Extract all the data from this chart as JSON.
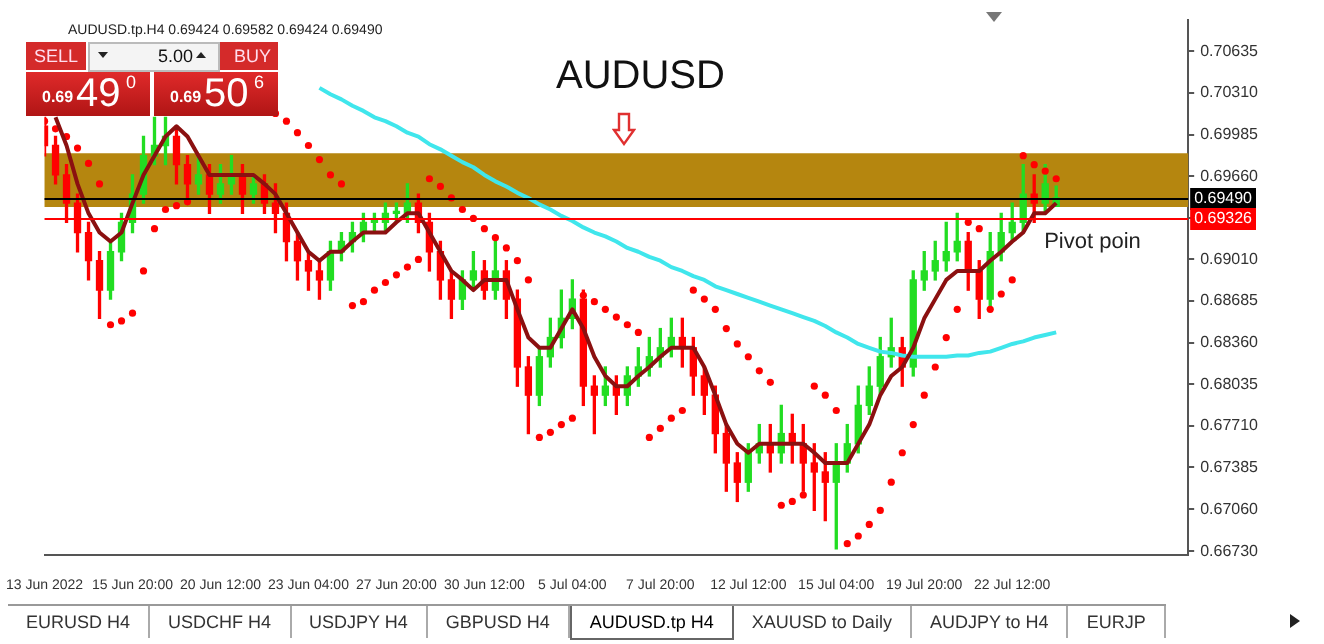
{
  "chart_data": {
    "type": "candlestick",
    "title": "AUDUSD",
    "categories": [
      "13 Jun 2022",
      null,
      null,
      null,
      null,
      null,
      null,
      null,
      "15 Jun 20:00",
      null,
      null,
      null,
      null,
      null,
      null,
      null,
      "20 Jun 12:00",
      null,
      null,
      null,
      null,
      null,
      null,
      null,
      "23 Jun 04:00",
      null,
      null,
      null,
      null,
      null,
      null,
      null,
      "27 Jun 20:00",
      null,
      null,
      null,
      null,
      null,
      null,
      null,
      "30 Jun 12:00",
      null,
      null,
      null,
      null,
      null,
      null,
      null,
      "5 Jul 04:00",
      null,
      null,
      null,
      null,
      null,
      null,
      null,
      "7 Jul 20:00",
      null,
      null,
      null,
      null,
      null,
      null,
      null,
      "12 Jul 12:00",
      null,
      null,
      null,
      null,
      null,
      null,
      null,
      "15 Jul 04:00",
      null,
      null,
      null,
      null,
      null,
      null,
      null,
      "19 Jul 20:00",
      null,
      null,
      null,
      null,
      null,
      null,
      null,
      "22 Jul 12:00",
      null,
      null,
      null,
      null
    ],
    "series": [
      {
        "type": "candlestick",
        "ohlc": [
          [
            0.7005,
            0.7012,
            0.6982,
            0.699
          ],
          [
            0.699,
            0.6997,
            0.696,
            0.6967
          ],
          [
            0.6967,
            0.6975,
            0.693,
            0.6945
          ],
          [
            0.6945,
            0.6952,
            0.6907,
            0.6922
          ],
          [
            0.6922,
            0.693,
            0.6885,
            0.69
          ],
          [
            0.69,
            0.6907,
            0.6855,
            0.6877
          ],
          [
            0.6877,
            0.6915,
            0.687,
            0.6907
          ],
          [
            0.6907,
            0.6937,
            0.69,
            0.693
          ],
          [
            0.693,
            0.6967,
            0.6922,
            0.6952
          ],
          [
            0.6952,
            0.6997,
            0.6945,
            0.6982
          ],
          [
            0.6982,
            0.7012,
            0.6975,
            0.699
          ],
          [
            0.699,
            0.7012,
            0.6975,
            0.6997
          ],
          [
            0.6997,
            0.7005,
            0.696,
            0.6975
          ],
          [
            0.6975,
            0.6982,
            0.6945,
            0.696
          ],
          [
            0.696,
            0.6982,
            0.6952,
            0.6967
          ],
          [
            0.6967,
            0.6975,
            0.6937,
            0.6952
          ],
          [
            0.6952,
            0.6975,
            0.6945,
            0.696
          ],
          [
            0.696,
            0.6982,
            0.6952,
            0.6967
          ],
          [
            0.6967,
            0.6975,
            0.6937,
            0.6952
          ],
          [
            0.6952,
            0.6967,
            0.6945,
            0.696
          ],
          [
            0.696,
            0.6967,
            0.6937,
            0.6945
          ],
          [
            0.6945,
            0.696,
            0.6922,
            0.6937
          ],
          [
            0.6937,
            0.6945,
            0.69,
            0.6915
          ],
          [
            0.6915,
            0.6922,
            0.6885,
            0.69
          ],
          [
            0.69,
            0.6907,
            0.6877,
            0.6892
          ],
          [
            0.6892,
            0.69,
            0.687,
            0.6885
          ],
          [
            0.6885,
            0.6915,
            0.6877,
            0.6907
          ],
          [
            0.6907,
            0.6922,
            0.69,
            0.6915
          ],
          [
            0.6915,
            0.693,
            0.6907,
            0.6922
          ],
          [
            0.6922,
            0.6937,
            0.6915,
            0.693
          ],
          [
            0.693,
            0.6937,
            0.6922,
            0.693
          ],
          [
            0.693,
            0.6945,
            0.6922,
            0.6937
          ],
          [
            0.6937,
            0.6945,
            0.693,
            0.6937
          ],
          [
            0.6937,
            0.696,
            0.693,
            0.6945
          ],
          [
            0.6945,
            0.6952,
            0.6922,
            0.693
          ],
          [
            0.693,
            0.6937,
            0.6892,
            0.6907
          ],
          [
            0.6907,
            0.6915,
            0.687,
            0.6885
          ],
          [
            0.6885,
            0.6892,
            0.6855,
            0.687
          ],
          [
            0.687,
            0.6892,
            0.6862,
            0.6885
          ],
          [
            0.6885,
            0.6907,
            0.6877,
            0.6892
          ],
          [
            0.6892,
            0.69,
            0.687,
            0.6877
          ],
          [
            0.6877,
            0.6915,
            0.687,
            0.6892
          ],
          [
            0.6892,
            0.69,
            0.6855,
            0.687
          ],
          [
            0.687,
            0.6877,
            0.6802,
            0.6817
          ],
          [
            0.6817,
            0.6825,
            0.6765,
            0.6795
          ],
          [
            0.6795,
            0.6832,
            0.6787,
            0.6825
          ],
          [
            0.6825,
            0.6855,
            0.6817,
            0.684
          ],
          [
            0.684,
            0.6877,
            0.6832,
            0.6855
          ],
          [
            0.6855,
            0.6885,
            0.6847,
            0.687
          ],
          [
            0.687,
            0.6877,
            0.6787,
            0.6802
          ],
          [
            0.6802,
            0.681,
            0.6765,
            0.6795
          ],
          [
            0.6795,
            0.6817,
            0.6787,
            0.6802
          ],
          [
            0.6802,
            0.681,
            0.678,
            0.6795
          ],
          [
            0.6795,
            0.6817,
            0.6787,
            0.681
          ],
          [
            0.681,
            0.6832,
            0.6802,
            0.6817
          ],
          [
            0.6817,
            0.684,
            0.681,
            0.6825
          ],
          [
            0.6825,
            0.6847,
            0.6817,
            0.6832
          ],
          [
            0.6832,
            0.6855,
            0.6825,
            0.684
          ],
          [
            0.684,
            0.6855,
            0.6817,
            0.6832
          ],
          [
            0.6832,
            0.684,
            0.6795,
            0.681
          ],
          [
            0.681,
            0.6817,
            0.678,
            0.6795
          ],
          [
            0.6795,
            0.6802,
            0.675,
            0.6765
          ],
          [
            0.6765,
            0.6772,
            0.672,
            0.6742
          ],
          [
            0.6742,
            0.675,
            0.6712,
            0.6727
          ],
          [
            0.6727,
            0.6757,
            0.672,
            0.675
          ],
          [
            0.675,
            0.6772,
            0.6742,
            0.6757
          ],
          [
            0.6757,
            0.6772,
            0.6735,
            0.675
          ],
          [
            0.675,
            0.6787,
            0.6742,
            0.6765
          ],
          [
            0.6765,
            0.678,
            0.6742,
            0.6757
          ],
          [
            0.6757,
            0.6772,
            0.672,
            0.6742
          ],
          [
            0.6742,
            0.6757,
            0.6705,
            0.6735
          ],
          [
            0.6735,
            0.675,
            0.6697,
            0.6727
          ],
          [
            0.6727,
            0.6757,
            0.6675,
            0.6742
          ],
          [
            0.6742,
            0.6772,
            0.6735,
            0.6757
          ],
          [
            0.6757,
            0.6802,
            0.675,
            0.6787
          ],
          [
            0.6787,
            0.6817,
            0.678,
            0.6802
          ],
          [
            0.6802,
            0.684,
            0.6795,
            0.6825
          ],
          [
            0.6825,
            0.6855,
            0.6817,
            0.6832
          ],
          [
            0.6832,
            0.684,
            0.6802,
            0.6817
          ],
          [
            0.6817,
            0.6892,
            0.681,
            0.6885
          ],
          [
            0.6885,
            0.6907,
            0.6877,
            0.6892
          ],
          [
            0.6892,
            0.6915,
            0.6885,
            0.69
          ],
          [
            0.69,
            0.693,
            0.6892,
            0.6907
          ],
          [
            0.6907,
            0.6937,
            0.69,
            0.6915
          ],
          [
            0.6915,
            0.6922,
            0.6877,
            0.6892
          ],
          [
            0.6892,
            0.69,
            0.6855,
            0.687
          ],
          [
            0.687,
            0.6922,
            0.6862,
            0.6907
          ],
          [
            0.6907,
            0.6937,
            0.69,
            0.6922
          ],
          [
            0.6922,
            0.6945,
            0.6915,
            0.693
          ],
          [
            0.693,
            0.6975,
            0.6922,
            0.6952
          ],
          [
            0.6952,
            0.6967,
            0.693,
            0.6945
          ],
          [
            0.6945,
            0.6975,
            0.6937,
            0.696
          ],
          [
            0.69424,
            0.69582,
            0.69424,
            0.6949
          ]
        ],
        "colors": [
          "#ff0000",
          "#ff0000",
          "#ff0000",
          "#ff0000",
          "#ff0000",
          "#ff0000",
          "#22dd22",
          "#22dd22",
          "#22dd22",
          "#22dd22",
          "#22dd22",
          "#22dd22",
          "#ff0000",
          "#ff0000",
          "#22dd22",
          "#ff0000",
          "#22dd22",
          "#22dd22",
          "#ff0000",
          "#22dd22",
          "#ff0000",
          "#ff0000",
          "#ff0000",
          "#ff0000",
          "#ff0000",
          "#ff0000",
          "#22dd22",
          "#22dd22",
          "#22dd22",
          "#22dd22",
          "#22dd22",
          "#22dd22",
          "#22dd22",
          "#22dd22",
          "#ff0000",
          "#ff0000",
          "#ff0000",
          "#ff0000",
          "#22dd22",
          "#22dd22",
          "#ff0000",
          "#22dd22",
          "#ff0000",
          "#ff0000",
          "#ff0000",
          "#22dd22",
          "#22dd22",
          "#22dd22",
          "#22dd22",
          "#ff0000",
          "#ff0000",
          "#22dd22",
          "#ff0000",
          "#22dd22",
          "#22dd22",
          "#22dd22",
          "#22dd22",
          "#22dd22",
          "#ff0000",
          "#ff0000",
          "#ff0000",
          "#ff0000",
          "#ff0000",
          "#ff0000",
          "#22dd22",
          "#22dd22",
          "#ff0000",
          "#22dd22",
          "#ff0000",
          "#ff0000",
          "#ff0000",
          "#ff0000",
          "#22dd22",
          "#22dd22",
          "#22dd22",
          "#22dd22",
          "#22dd22",
          "#22dd22",
          "#ff0000",
          "#22dd22",
          "#22dd22",
          "#22dd22",
          "#22dd22",
          "#22dd22",
          "#ff0000",
          "#ff0000",
          "#22dd22",
          "#22dd22",
          "#22dd22",
          "#22dd22",
          "#ff0000",
          "#22dd22",
          "#22dd22"
        ]
      },
      {
        "type": "line",
        "color": "#8b1010",
        "values": [
          null,
          0.7012,
          0.699,
          0.696,
          0.6937,
          0.6922,
          0.6915,
          0.6922,
          0.6945,
          0.6967,
          0.6982,
          0.6997,
          0.7005,
          0.6997,
          0.6982,
          0.6967,
          0.6967,
          0.6967,
          0.6967,
          0.6967,
          0.696,
          0.6952,
          0.6937,
          0.6922,
          0.6907,
          0.69,
          0.6907,
          0.6907,
          0.6915,
          0.6922,
          0.6922,
          0.6922,
          0.693,
          0.6937,
          0.6937,
          0.6922,
          0.6907,
          0.6892,
          0.6885,
          0.6877,
          0.6885,
          0.6885,
          0.6885,
          0.6862,
          0.684,
          0.6832,
          0.6832,
          0.6847,
          0.6862,
          0.6847,
          0.6825,
          0.681,
          0.6802,
          0.6802,
          0.681,
          0.6817,
          0.6825,
          0.6832,
          0.6832,
          0.6832,
          0.6817,
          0.6795,
          0.6772,
          0.6757,
          0.675,
          0.6757,
          0.6757,
          0.6757,
          0.6757,
          0.6757,
          0.675,
          0.6742,
          0.6742,
          0.6742,
          0.6757,
          0.6772,
          0.6795,
          0.681,
          0.6817,
          0.6832,
          0.6855,
          0.687,
          0.6885,
          0.6892,
          0.6892,
          0.6892,
          0.69,
          0.6907,
          0.6915,
          0.6922,
          0.6937,
          0.6937,
          0.6945
        ]
      },
      {
        "type": "line",
        "color": "#40e6ec",
        "values": [
          null,
          null,
          null,
          null,
          null,
          null,
          null,
          null,
          null,
          null,
          null,
          null,
          null,
          null,
          null,
          null,
          null,
          null,
          null,
          null,
          null,
          null,
          null,
          null,
          null,
          0.7035,
          0.703,
          0.7026,
          0.7021,
          0.7017,
          0.7012,
          0.7009,
          0.7005,
          0.7,
          0.6997,
          0.6991,
          0.6987,
          0.6982,
          0.6977,
          0.6973,
          0.6967,
          0.6962,
          0.6958,
          0.6953,
          0.6949,
          0.6944,
          0.694,
          0.6935,
          0.6931,
          0.6926,
          0.6922,
          0.6919,
          0.6915,
          0.691,
          0.6907,
          0.6903,
          0.69,
          0.6895,
          0.6892,
          0.6888,
          0.6885,
          0.688,
          0.6877,
          0.6874,
          0.6871,
          0.6868,
          0.6865,
          0.6862,
          0.6859,
          0.6856,
          0.6853,
          0.6849,
          0.6844,
          0.684,
          0.6835,
          0.6832,
          0.6829,
          0.6828,
          0.6826,
          0.6825,
          0.6825,
          0.6825,
          0.6825,
          0.6826,
          0.6826,
          0.6828,
          0.6829,
          0.6832,
          0.6835,
          0.6837,
          0.684,
          0.6842,
          0.6844
        ]
      },
      {
        "type": "scatter",
        "color": "#ff0000",
        "marker": "circle",
        "values": [
          0.7009,
          0.7003,
          0.6997,
          0.6988,
          0.6976,
          0.696,
          0.685,
          0.6853,
          0.6859,
          0.6892,
          0.6925,
          0.694,
          0.6943,
          0.6946,
          null,
          null,
          null,
          null,
          null,
          null,
          null,
          0.7015,
          0.7009,
          0.7,
          0.699,
          0.6979,
          0.6967,
          0.696,
          0.6865,
          0.6868,
          0.6877,
          0.6883,
          0.6889,
          0.6895,
          0.6901,
          0.6964,
          0.6958,
          0.6949,
          0.694,
          0.6933,
          0.6925,
          0.6918,
          0.691,
          0.69,
          0.6885,
          0.6762,
          0.6766,
          0.6772,
          0.6777,
          0.6873,
          0.6868,
          0.6862,
          0.6856,
          0.685,
          0.6844,
          0.6762,
          0.6769,
          0.6777,
          0.6783,
          0.6877,
          0.687,
          0.6862,
          0.6847,
          0.6835,
          0.6825,
          0.6814,
          0.6805,
          0.6709,
          0.6712,
          0.6717,
          0.6802,
          0.6795,
          0.6783,
          0.6679,
          0.6685,
          0.6694,
          0.6705,
          0.6727,
          0.675,
          0.6772,
          0.6795,
          0.6817,
          0.684,
          0.6862,
          0.693,
          0.6925,
          0.6862,
          0.6874,
          0.6885,
          0.6982,
          0.6975,
          0.697,
          0.6964
        ]
      }
    ],
    "ylim": [
      0.667,
      0.7088
    ],
    "yticks": [
      0.70635,
      {
        "value": 0.7031,
        "label": "0.70310"
      },
      0.69985,
      {
        "value": 0.6966,
        "label": "0.69660"
      },
      {
        "value": 0.69335,
        "label": null
      },
      {
        "value": 0.6901,
        "label": "0.69010"
      },
      0.68685,
      {
        "value": 0.6836,
        "label": "0.68360"
      },
      0.68035,
      {
        "value": 0.6771,
        "label": "0.67710"
      },
      0.67385,
      {
        "value": 0.6706,
        "label": "0.67060"
      },
      {
        "value": 0.6673,
        "label": "0.66730"
      }
    ],
    "bands": [
      {
        "axis": "y",
        "from": 0.6942,
        "to": 0.6984,
        "color": "#b5860f"
      }
    ],
    "ref_lines": [
      {
        "axis": "y",
        "value": 0.6949,
        "label": "0.69490",
        "color": "#000000"
      },
      {
        "axis": "y",
        "value": 0.69326,
        "label": "0.69326",
        "color": "#ff0000"
      }
    ],
    "annotations": [
      "AUDUSD.tp.H4  0.69424 0.69582 0.69424 0.69490",
      {
        "text": "Pivot poin",
        "y": 0.69326
      },
      "SELL",
      "5.00",
      "BUY",
      "0.69",
      "49",
      "0",
      "0.69",
      "50",
      "6",
      "EURUSD H4",
      "USDCHF H4",
      "USDJPY H4",
      "GBPUSD H4",
      "AUDUSD.tp H4",
      "XAUUSD to Daily",
      "AUDJPY to H4",
      "EURJP"
    ],
    "legend": false,
    "grid": false
  }
}
